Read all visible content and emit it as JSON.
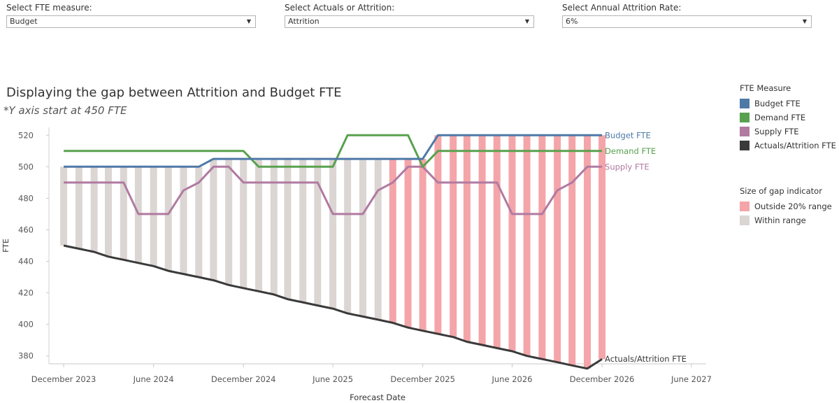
{
  "filters": [
    {
      "label": "Select FTE measure:",
      "value": "Budget"
    },
    {
      "label": "Select Actuals or Attrition:",
      "value": "Attrition"
    },
    {
      "label": "Select Annual Attrition Rate:",
      "value": "6%"
    }
  ],
  "legend": {
    "measure_title": "FTE Measure",
    "measures": [
      {
        "label": "Budget FTE",
        "color": "#4e79a7"
      },
      {
        "label": "Demand FTE",
        "color": "#59a14f"
      },
      {
        "label": "Supply FTE",
        "color": "#b07aa1"
      },
      {
        "label": "Actuals/Attrition FTE",
        "color": "#3a3a3a"
      }
    ],
    "gap_title": "Size of gap indicator",
    "gaps": [
      {
        "label": "Outside 20% range",
        "color": "#f4a5a9"
      },
      {
        "label": "Within range",
        "color": "#dbd6d3"
      }
    ]
  },
  "chart_data": {
    "type": "line",
    "title": "Displaying the gap between Attrition and Budget FTE",
    "subtitle": "*Y axis start at 450 FTE",
    "xlabel": "Forecast Date",
    "ylabel": "FTE",
    "ylim": [
      375,
      525
    ],
    "yticks": [
      380,
      400,
      420,
      440,
      460,
      480,
      500,
      520
    ],
    "x_domain": [
      "2023-11-01",
      "2027-07-01"
    ],
    "xticks": [
      {
        "label": "December 2023",
        "date": "2023-12-01"
      },
      {
        "label": "June 2024",
        "date": "2024-06-01"
      },
      {
        "label": "December 2024",
        "date": "2024-12-01"
      },
      {
        "label": "June 2025",
        "date": "2025-06-01"
      },
      {
        "label": "December 2025",
        "date": "2025-12-01"
      },
      {
        "label": "June 2026",
        "date": "2026-06-01"
      },
      {
        "label": "December 2026",
        "date": "2026-12-01"
      },
      {
        "label": "June 2027",
        "date": "2027-06-01"
      }
    ],
    "x": [
      "2023-12",
      "2024-01",
      "2024-02",
      "2024-03",
      "2024-04",
      "2024-05",
      "2024-06",
      "2024-07",
      "2024-08",
      "2024-09",
      "2024-10",
      "2024-11",
      "2024-12",
      "2025-01",
      "2025-02",
      "2025-03",
      "2025-04",
      "2025-05",
      "2025-06",
      "2025-07",
      "2025-08",
      "2025-09",
      "2025-10",
      "2025-11",
      "2025-12",
      "2026-01",
      "2026-02",
      "2026-03",
      "2026-04",
      "2026-05",
      "2026-06",
      "2026-07",
      "2026-08",
      "2026-09",
      "2026-10",
      "2026-11",
      "2026-12"
    ],
    "series": [
      {
        "name": "Budget FTE",
        "color": "#4e79a7",
        "values": [
          500,
          500,
          500,
          500,
          500,
          500,
          500,
          500,
          500,
          500,
          505,
          505,
          505,
          505,
          505,
          505,
          505,
          505,
          505,
          505,
          505,
          505,
          505,
          505,
          505,
          520,
          520,
          520,
          520,
          520,
          520,
          520,
          520,
          520,
          520,
          520,
          520
        ]
      },
      {
        "name": "Demand FTE",
        "color": "#59a14f",
        "values": [
          510,
          510,
          510,
          510,
          510,
          510,
          510,
          510,
          510,
          510,
          510,
          510,
          510,
          500,
          500,
          500,
          500,
          500,
          500,
          520,
          520,
          520,
          520,
          520,
          500,
          510,
          510,
          510,
          510,
          510,
          510,
          510,
          510,
          510,
          510,
          510,
          510
        ]
      },
      {
        "name": "Supply FTE",
        "color": "#b07aa1",
        "values": [
          490,
          490,
          490,
          490,
          490,
          470,
          470,
          470,
          485,
          490,
          500,
          500,
          490,
          490,
          490,
          490,
          490,
          490,
          470,
          470,
          470,
          485,
          490,
          500,
          500,
          490,
          490,
          490,
          490,
          490,
          470,
          470,
          470,
          485,
          490,
          500,
          500
        ]
      },
      {
        "name": "Actuals/Attrition FTE",
        "color": "#3a3a3a",
        "values": [
          450,
          448,
          446,
          443,
          441,
          439,
          437,
          434,
          432,
          430,
          428,
          425,
          423,
          421,
          419,
          416,
          414,
          412,
          410,
          407,
          405,
          403,
          401,
          398,
          396,
          394,
          392,
          389,
          387,
          385,
          383,
          380,
          378,
          376,
          374,
          372,
          378
        ]
      }
    ],
    "gap_flags": [
      "Within range",
      "Within range",
      "Within range",
      "Within range",
      "Within range",
      "Within range",
      "Within range",
      "Within range",
      "Within range",
      "Within range",
      "Within range",
      "Within range",
      "Within range",
      "Within range",
      "Within range",
      "Within range",
      "Within range",
      "Within range",
      "Within range",
      "Within range",
      "Within range",
      "Within range",
      "Outside 20% range",
      "Outside 20% range",
      "Outside 20% range",
      "Outside 20% range",
      "Outside 20% range",
      "Outside 20% range",
      "Outside 20% range",
      "Outside 20% range",
      "Outside 20% range",
      "Outside 20% range",
      "Outside 20% range",
      "Outside 20% range",
      "Outside 20% range",
      "Outside 20% range",
      "Outside 20% range"
    ],
    "end_labels": [
      "Budget FTE",
      "Demand FTE",
      "Supply FTE",
      "Actuals/Attrition FTE"
    ]
  }
}
